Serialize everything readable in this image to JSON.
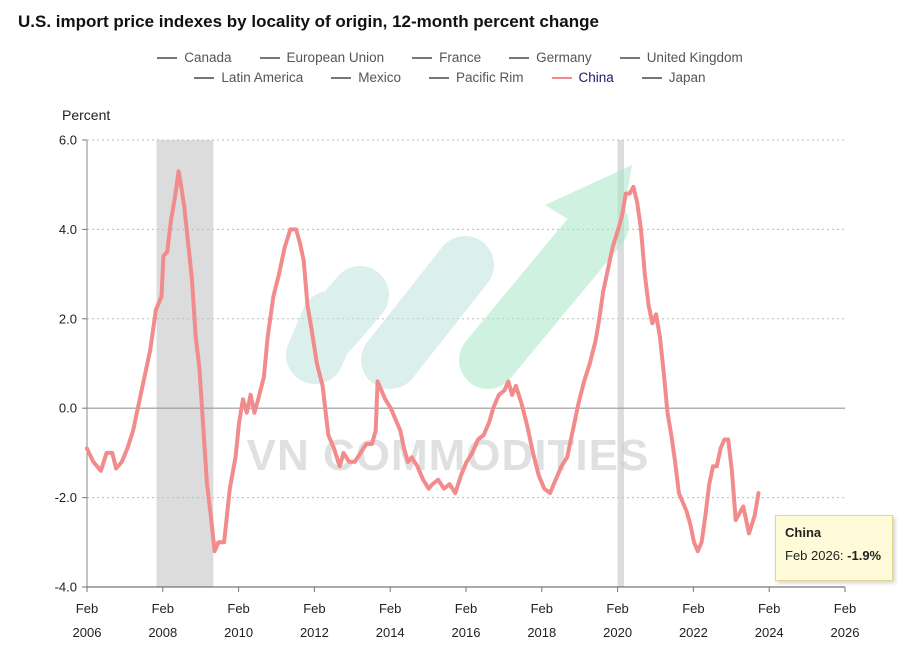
{
  "title": "U.S. import price indexes by locality of origin, 12-month percent change",
  "legend": {
    "row1": [
      {
        "name": "Canada",
        "color": "#777777"
      },
      {
        "name": "European Union",
        "color": "#777777"
      },
      {
        "name": "France",
        "color": "#777777"
      },
      {
        "name": "Germany",
        "color": "#777777"
      },
      {
        "name": "United Kingdom",
        "color": "#777777"
      }
    ],
    "row2": [
      {
        "name": "Latin America",
        "color": "#777777"
      },
      {
        "name": "Mexico",
        "color": "#777777"
      },
      {
        "name": "Pacific Rim",
        "color": "#777777"
      },
      {
        "name": "China",
        "color": "#f28b8b",
        "active": true
      },
      {
        "name": "Japan",
        "color": "#777777"
      }
    ]
  },
  "watermark": "VN COMMODITIES",
  "tooltip": {
    "title": "China",
    "label": "Feb 2026: ",
    "value": "-1.9%"
  },
  "chart_data": {
    "type": "line",
    "ylabel": "Percent",
    "ylim": [
      -4.0,
      6.0
    ],
    "yticks": [
      -4.0,
      -2.0,
      0.0,
      2.0,
      4.0,
      6.0
    ],
    "ytick_labels": [
      "-4.0",
      "-2.0",
      "0.0",
      "2.0",
      "4.0",
      "6.0"
    ],
    "xlim": [
      2006.083,
      2026.083
    ],
    "xticks": [
      {
        "x": 2006.083,
        "month": "Feb",
        "year": "2006"
      },
      {
        "x": 2008.083,
        "month": "Feb",
        "year": "2008"
      },
      {
        "x": 2010.083,
        "month": "Feb",
        "year": "2010"
      },
      {
        "x": 2012.083,
        "month": "Feb",
        "year": "2012"
      },
      {
        "x": 2014.083,
        "month": "Feb",
        "year": "2014"
      },
      {
        "x": 2016.083,
        "month": "Feb",
        "year": "2016"
      },
      {
        "x": 2018.083,
        "month": "Feb",
        "year": "2018"
      },
      {
        "x": 2020.083,
        "month": "Feb",
        "year": "2020"
      },
      {
        "x": 2022.083,
        "month": "Feb",
        "year": "2022"
      },
      {
        "x": 2024.083,
        "month": "Feb",
        "year": "2024"
      },
      {
        "x": 2026.083,
        "month": "Feb",
        "year": "2026"
      }
    ],
    "grid": true,
    "recessions": [
      [
        2007.917,
        2009.417
      ],
      [
        2020.083,
        2020.25
      ]
    ],
    "series": [
      {
        "name": "China",
        "color": "#f28b8b",
        "points": [
          [
            2006.08,
            -0.9
          ],
          [
            2006.25,
            -1.2
          ],
          [
            2006.45,
            -1.4
          ],
          [
            2006.6,
            -1.0
          ],
          [
            2006.75,
            -1.0
          ],
          [
            2006.85,
            -1.35
          ],
          [
            2007.0,
            -1.2
          ],
          [
            2007.15,
            -0.9
          ],
          [
            2007.3,
            -0.5
          ],
          [
            2007.45,
            0.1
          ],
          [
            2007.6,
            0.7
          ],
          [
            2007.75,
            1.3
          ],
          [
            2007.9,
            2.2
          ],
          [
            2008.05,
            2.5
          ],
          [
            2008.1,
            3.4
          ],
          [
            2008.2,
            3.5
          ],
          [
            2008.3,
            4.2
          ],
          [
            2008.4,
            4.7
          ],
          [
            2008.5,
            5.3
          ],
          [
            2008.58,
            4.9
          ],
          [
            2008.65,
            4.5
          ],
          [
            2008.75,
            3.7
          ],
          [
            2008.85,
            2.9
          ],
          [
            2008.95,
            1.6
          ],
          [
            2009.05,
            0.9
          ],
          [
            2009.15,
            -0.4
          ],
          [
            2009.25,
            -1.7
          ],
          [
            2009.35,
            -2.4
          ],
          [
            2009.45,
            -3.2
          ],
          [
            2009.55,
            -3.0
          ],
          [
            2009.7,
            -3.0
          ],
          [
            2009.85,
            -1.8
          ],
          [
            2010.0,
            -1.1
          ],
          [
            2010.1,
            -0.3
          ],
          [
            2010.2,
            0.2
          ],
          [
            2010.3,
            -0.1
          ],
          [
            2010.4,
            0.3
          ],
          [
            2010.5,
            -0.1
          ],
          [
            2010.6,
            0.2
          ],
          [
            2010.75,
            0.7
          ],
          [
            2010.85,
            1.6
          ],
          [
            2011.0,
            2.5
          ],
          [
            2011.15,
            3.0
          ],
          [
            2011.3,
            3.6
          ],
          [
            2011.45,
            4.0
          ],
          [
            2011.6,
            4.0
          ],
          [
            2011.7,
            3.7
          ],
          [
            2011.8,
            3.3
          ],
          [
            2011.9,
            2.3
          ],
          [
            2012.0,
            1.8
          ],
          [
            2012.15,
            1.0
          ],
          [
            2012.3,
            0.5
          ],
          [
            2012.45,
            -0.6
          ],
          [
            2012.6,
            -0.9
          ],
          [
            2012.75,
            -1.3
          ],
          [
            2012.85,
            -1.0
          ],
          [
            2013.0,
            -1.2
          ],
          [
            2013.15,
            -1.2
          ],
          [
            2013.3,
            -1.0
          ],
          [
            2013.45,
            -0.8
          ],
          [
            2013.6,
            -0.8
          ],
          [
            2013.7,
            -0.5
          ],
          [
            2013.75,
            0.6
          ],
          [
            2013.85,
            0.4
          ],
          [
            2013.95,
            0.2
          ],
          [
            2014.1,
            0.0
          ],
          [
            2014.25,
            -0.3
          ],
          [
            2014.35,
            -0.5
          ],
          [
            2014.45,
            -0.9
          ],
          [
            2014.55,
            -1.2
          ],
          [
            2014.65,
            -1.1
          ],
          [
            2014.8,
            -1.3
          ],
          [
            2014.95,
            -1.6
          ],
          [
            2015.1,
            -1.8
          ],
          [
            2015.2,
            -1.7
          ],
          [
            2015.35,
            -1.6
          ],
          [
            2015.5,
            -1.8
          ],
          [
            2015.65,
            -1.7
          ],
          [
            2015.8,
            -1.9
          ],
          [
            2015.95,
            -1.5
          ],
          [
            2016.1,
            -1.2
          ],
          [
            2016.25,
            -1.0
          ],
          [
            2016.4,
            -0.7
          ],
          [
            2016.55,
            -0.6
          ],
          [
            2016.7,
            -0.3
          ],
          [
            2016.8,
            0.0
          ],
          [
            2016.95,
            0.3
          ],
          [
            2017.1,
            0.4
          ],
          [
            2017.2,
            0.6
          ],
          [
            2017.3,
            0.3
          ],
          [
            2017.4,
            0.5
          ],
          [
            2017.55,
            0.1
          ],
          [
            2017.7,
            -0.4
          ],
          [
            2017.85,
            -1.0
          ],
          [
            2018.0,
            -1.5
          ],
          [
            2018.15,
            -1.8
          ],
          [
            2018.3,
            -1.9
          ],
          [
            2018.45,
            -1.6
          ],
          [
            2018.6,
            -1.3
          ],
          [
            2018.75,
            -1.1
          ],
          [
            2018.85,
            -0.7
          ],
          [
            2018.95,
            -0.3
          ],
          [
            2019.05,
            0.1
          ],
          [
            2019.2,
            0.6
          ],
          [
            2019.35,
            1.0
          ],
          [
            2019.5,
            1.5
          ],
          [
            2019.6,
            2.0
          ],
          [
            2019.7,
            2.6
          ],
          [
            2019.85,
            3.2
          ],
          [
            2019.95,
            3.6
          ],
          [
            2020.1,
            4.0
          ],
          [
            2020.2,
            4.3
          ],
          [
            2020.3,
            4.8
          ],
          [
            2020.4,
            4.8
          ],
          [
            2020.5,
            4.95
          ],
          [
            2020.6,
            4.6
          ],
          [
            2020.7,
            4.0
          ],
          [
            2020.8,
            3.0
          ],
          [
            2020.9,
            2.3
          ],
          [
            2021.0,
            1.9
          ],
          [
            2021.1,
            2.1
          ],
          [
            2021.2,
            1.6
          ],
          [
            2021.3,
            0.8
          ],
          [
            2021.4,
            -0.1
          ],
          [
            2021.5,
            -0.6
          ],
          [
            2021.6,
            -1.2
          ],
          [
            2021.7,
            -1.9
          ],
          [
            2021.8,
            -2.1
          ],
          [
            2021.9,
            -2.3
          ],
          [
            2022.0,
            -2.6
          ],
          [
            2022.1,
            -3.0
          ],
          [
            2022.2,
            -3.2
          ],
          [
            2022.3,
            -3.0
          ],
          [
            2022.4,
            -2.4
          ],
          [
            2022.5,
            -1.7
          ],
          [
            2022.6,
            -1.3
          ],
          [
            2022.7,
            -1.3
          ],
          [
            2022.8,
            -0.9
          ],
          [
            2022.9,
            -0.7
          ],
          [
            2023.0,
            -0.7
          ],
          [
            2023.1,
            -1.4
          ],
          [
            2023.2,
            -2.5
          ],
          [
            2023.4,
            -2.2
          ],
          [
            2023.55,
            -2.8
          ],
          [
            2023.7,
            -2.4
          ],
          [
            2023.8,
            -1.9
          ]
        ]
      }
    ]
  }
}
